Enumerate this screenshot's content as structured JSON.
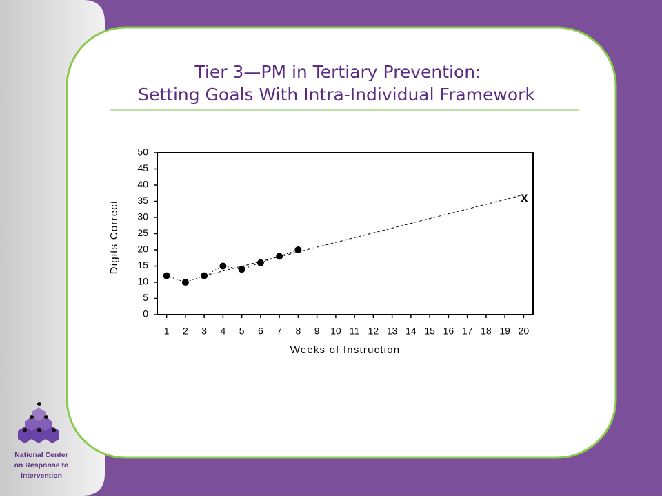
{
  "title": [
    "Tier 3—PM in Tertiary Prevention:",
    "Setting Goals With Intra-Individual Framework"
  ],
  "logo_text": [
    "National Center",
    "on Response to",
    "Intervention"
  ],
  "chart_data": {
    "type": "line",
    "x_label": "Weeks of Instruction",
    "y_label": "Digits Correct",
    "xlim": [
      0.5,
      20.5
    ],
    "xticks": [
      1,
      2,
      3,
      4,
      5,
      6,
      7,
      8,
      9,
      10,
      11,
      12,
      13,
      14,
      15,
      16,
      17,
      18,
      19,
      20
    ],
    "ylim": [
      0,
      50
    ],
    "yticks": [
      0,
      5,
      10,
      15,
      20,
      25,
      30,
      35,
      40,
      45,
      50
    ],
    "series": [
      {
        "color": "#000000",
        "style": "dotted",
        "markers": true,
        "x": [
          1,
          2,
          3,
          4,
          5,
          6,
          7,
          8
        ],
        "values": [
          12,
          10,
          12,
          15,
          14,
          16,
          18,
          20
        ]
      },
      {
        "color": "#000000",
        "style": "dashed",
        "markers": false,
        "x": [
          3,
          20
        ],
        "values": [
          12,
          37
        ]
      }
    ],
    "goal_marker": "X"
  }
}
